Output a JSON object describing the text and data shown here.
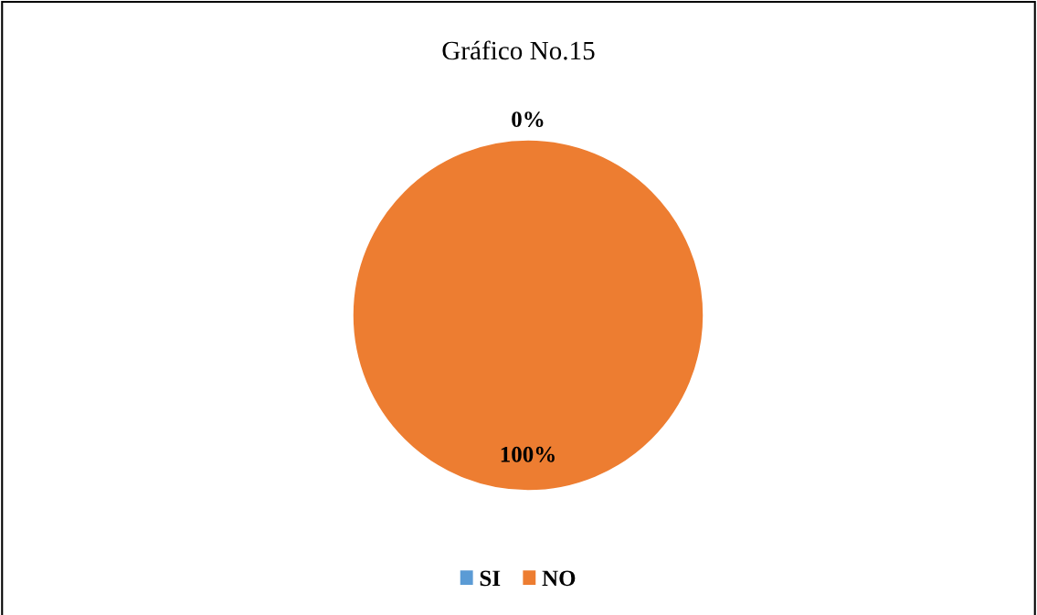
{
  "chart_data": {
    "type": "pie",
    "title": "Gráfico No.15",
    "categories": [
      "SI",
      "NO"
    ],
    "values": [
      0,
      100
    ],
    "colors": [
      "#5b9bd5",
      "#ed7d31"
    ],
    "value_labels": [
      "0%",
      "100%"
    ],
    "legend": "bottom"
  }
}
